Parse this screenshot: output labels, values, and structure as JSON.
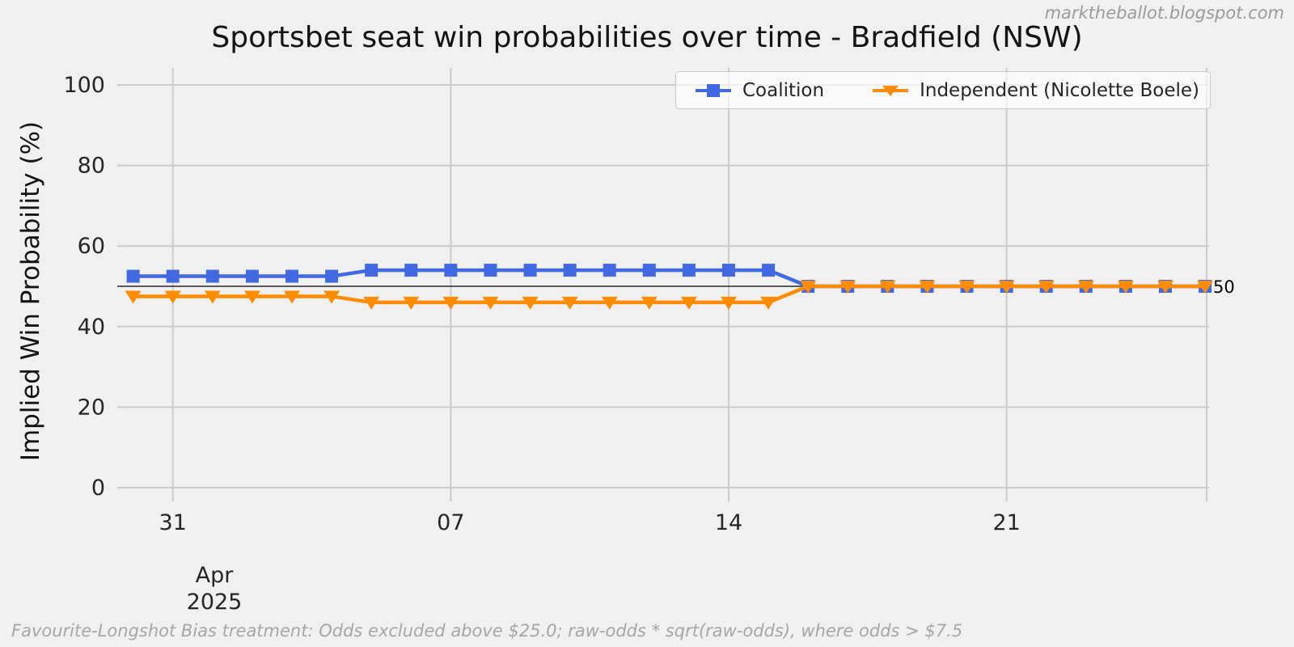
{
  "watermark": "marktheballot.blogspot.com",
  "title": "Sportsbet seat win probabilities over time - Bradfield (NSW)",
  "ylabel": "Implied Win Probability (%)",
  "footnote": "Favourite-Longshot Bias treatment: Odds excluded above $25.0; raw-odds * sqrt(raw-odds), where odds > $7.5",
  "ref_line": {
    "value": 50,
    "label": "50"
  },
  "colors": {
    "background": "#f0f0f0",
    "gridline": "#cbcbcb",
    "coalition_blue": "#4169e1",
    "independent_orange": "#ff8c00",
    "reference_black": "#000000"
  },
  "chart_data": {
    "type": "line",
    "title": "Sportsbet seat win probabilities over time - Bradfield (NSW)",
    "xlabel": "",
    "ylabel": "Implied Win Probability (%)",
    "ylim": [
      0,
      100
    ],
    "grid": true,
    "legend_position": "top-right",
    "x": [
      "2025-03-30",
      "2025-03-31",
      "2025-04-01",
      "2025-04-02",
      "2025-04-03",
      "2025-04-04",
      "2025-04-05",
      "2025-04-06",
      "2025-04-07",
      "2025-04-08",
      "2025-04-09",
      "2025-04-10",
      "2025-04-11",
      "2025-04-12",
      "2025-04-13",
      "2025-04-14",
      "2025-04-15",
      "2025-04-16",
      "2025-04-17",
      "2025-04-18",
      "2025-04-19",
      "2025-04-20",
      "2025-04-21",
      "2025-04-22",
      "2025-04-23",
      "2025-04-24",
      "2025-04-25",
      "2025-04-26"
    ],
    "series": [
      {
        "name": "Coalition",
        "color": "#4169e1",
        "marker": "square",
        "values": [
          52.5,
          52.5,
          52.5,
          52.5,
          52.5,
          52.5,
          54,
          54,
          54,
          54,
          54,
          54,
          54,
          54,
          54,
          54,
          54,
          50,
          50,
          50,
          50,
          50,
          50,
          50,
          50,
          50,
          50,
          50
        ]
      },
      {
        "name": "Independent (Nicolette Boele)",
        "color": "#ff8c00",
        "marker": "triangle-down",
        "values": [
          47.5,
          47.5,
          47.5,
          47.5,
          47.5,
          47.5,
          46,
          46,
          46,
          46,
          46,
          46,
          46,
          46,
          46,
          46,
          46,
          50,
          50,
          50,
          50,
          50,
          50,
          50,
          50,
          50,
          50,
          50
        ]
      }
    ],
    "y_ticks": [
      0,
      20,
      40,
      60,
      80,
      100
    ],
    "x_ticks": [
      {
        "day": 1,
        "label": "31"
      },
      {
        "day": 8,
        "label": "07"
      },
      {
        "day": 15,
        "label": "14"
      },
      {
        "day": 22,
        "label": "21"
      }
    ],
    "x_period_label": [
      "Apr",
      "2025"
    ],
    "reference_line": {
      "value": 50,
      "label": "50"
    }
  }
}
